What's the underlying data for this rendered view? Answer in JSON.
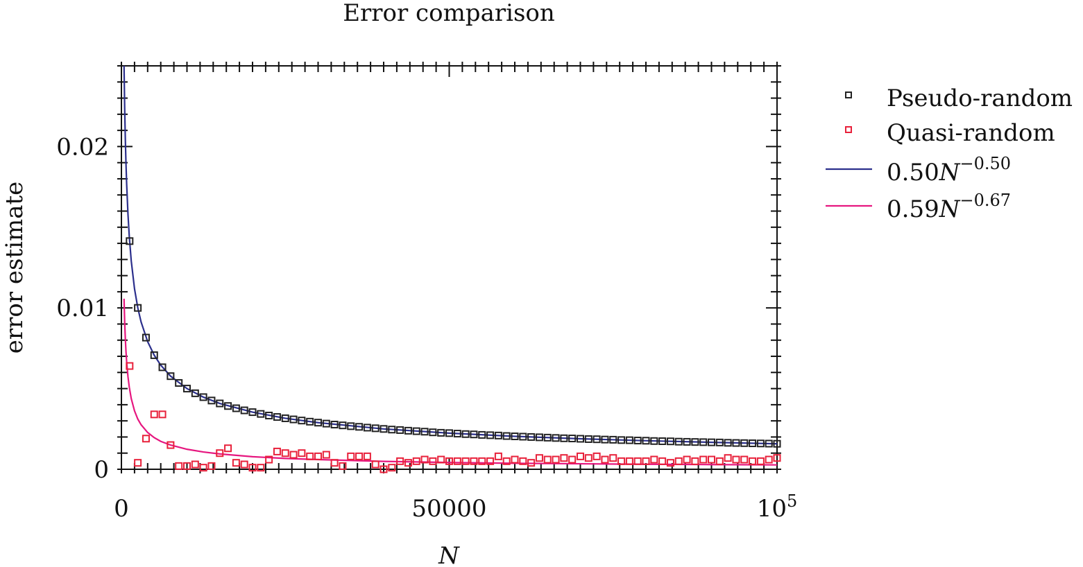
{
  "chart_data": {
    "type": "scatter",
    "title": "Error comparison",
    "xlabel": "N",
    "ylabel": "error estimate",
    "xlim": [
      0,
      100000
    ],
    "ylim": [
      0,
      0.025
    ],
    "x_ticks": [
      {
        "value": 0,
        "label": "0"
      },
      {
        "value": 50000,
        "label": "50000"
      },
      {
        "value": 100000,
        "label": "10",
        "sup": "5"
      }
    ],
    "y_ticks": [
      {
        "value": 0,
        "label": "0"
      },
      {
        "value": 0.01,
        "label": "0.01"
      },
      {
        "value": 0.02,
        "label": "0.02"
      }
    ],
    "grid": false,
    "legend_position": "right",
    "legend": [
      {
        "label": "Pseudo-random",
        "kind": "marker",
        "color": "#222222"
      },
      {
        "label": "Quasi-random",
        "kind": "marker",
        "color": "#e8203a"
      },
      {
        "label": "0.50N",
        "sup": "−0.50",
        "kind": "line",
        "color": "#2b2f8c"
      },
      {
        "label": "0.59N",
        "sup": "−0.67",
        "kind": "line",
        "color": "#e6167f"
      }
    ],
    "series": [
      {
        "name": "Pseudo-random",
        "type": "scatter",
        "color": "#222222",
        "x": [
          1250,
          2500,
          3750,
          5000,
          6250,
          7500,
          8750,
          10000,
          11250,
          12500,
          13750,
          15000,
          16250,
          17500,
          18750,
          20000,
          21250,
          22500,
          23750,
          25000,
          26250,
          27500,
          28750,
          30000,
          31250,
          32500,
          33750,
          35000,
          36250,
          37500,
          38750,
          40000,
          41250,
          42500,
          43750,
          45000,
          46250,
          47500,
          48750,
          50000,
          51250,
          52500,
          53750,
          55000,
          56250,
          57500,
          58750,
          60000,
          61250,
          62500,
          63750,
          65000,
          66250,
          67500,
          68750,
          70000,
          71250,
          72500,
          73750,
          75000,
          76250,
          77500,
          78750,
          80000,
          81250,
          82500,
          83750,
          85000,
          86250,
          87500,
          88750,
          90000,
          91250,
          92500,
          93750,
          95000,
          96250,
          97500,
          98750,
          100000
        ],
        "y": [
          0.01414,
          0.01,
          0.00816,
          0.00707,
          0.00632,
          0.00577,
          0.00535,
          0.005,
          0.00471,
          0.00447,
          0.00426,
          0.00408,
          0.00392,
          0.00378,
          0.00365,
          0.00354,
          0.00343,
          0.00333,
          0.00324,
          0.00316,
          0.00309,
          0.00302,
          0.00295,
          0.00289,
          0.00283,
          0.00277,
          0.00272,
          0.00267,
          0.00263,
          0.00258,
          0.00254,
          0.0025,
          0.00246,
          0.00243,
          0.00239,
          0.00236,
          0.00233,
          0.00229,
          0.00226,
          0.00224,
          0.00221,
          0.00218,
          0.00216,
          0.00213,
          0.00211,
          0.00209,
          0.00206,
          0.00204,
          0.00202,
          0.002,
          0.00198,
          0.00196,
          0.00194,
          0.00192,
          0.00191,
          0.00189,
          0.00187,
          0.00186,
          0.00184,
          0.00183,
          0.00181,
          0.0018,
          0.00178,
          0.00177,
          0.00175,
          0.00174,
          0.00173,
          0.00171,
          0.0017,
          0.00169,
          0.00168,
          0.00167,
          0.00166,
          0.00164,
          0.00163,
          0.00162,
          0.00161,
          0.0016,
          0.00159,
          0.00158
        ]
      },
      {
        "name": "Quasi-random",
        "type": "scatter",
        "color": "#e8203a",
        "x": [
          1250,
          2500,
          3750,
          5000,
          6250,
          7500,
          8750,
          10000,
          11250,
          12500,
          13750,
          15000,
          16250,
          17500,
          18750,
          20000,
          21250,
          22500,
          23750,
          25000,
          26250,
          27500,
          28750,
          30000,
          31250,
          32500,
          33750,
          35000,
          36250,
          37500,
          38750,
          40000,
          41250,
          42500,
          43750,
          45000,
          46250,
          47500,
          48750,
          50000,
          51250,
          52500,
          53750,
          55000,
          56250,
          57500,
          58750,
          60000,
          61250,
          62500,
          63750,
          65000,
          66250,
          67500,
          68750,
          70000,
          71250,
          72500,
          73750,
          75000,
          76250,
          77500,
          78750,
          80000,
          81250,
          82500,
          83750,
          85000,
          86250,
          87500,
          88750,
          90000,
          91250,
          92500,
          93750,
          95000,
          96250,
          97500,
          98750,
          100000
        ],
        "y": [
          0.0064,
          0.0004,
          0.0019,
          0.0034,
          0.0034,
          0.0015,
          0.0002,
          0.0002,
          0.0003,
          0.0001,
          0.0002,
          0.001,
          0.0013,
          0.0004,
          0.0003,
          0.0001,
          0.0001,
          0.0006,
          0.0011,
          0.001,
          0.0009,
          0.001,
          0.0008,
          0.0008,
          0.0009,
          0.0004,
          0.0002,
          0.0008,
          0.0008,
          0.0008,
          0.0003,
          0.0,
          0.0001,
          0.0005,
          0.0004,
          0.0005,
          0.0006,
          0.0005,
          0.0006,
          0.0005,
          0.0005,
          0.0005,
          0.0005,
          0.0005,
          0.0005,
          0.0008,
          0.0005,
          0.0006,
          0.0005,
          0.0004,
          0.0007,
          0.0006,
          0.0006,
          0.0007,
          0.0006,
          0.0008,
          0.0007,
          0.0008,
          0.0006,
          0.0007,
          0.0005,
          0.0005,
          0.0005,
          0.0005,
          0.0006,
          0.0005,
          0.0004,
          0.0005,
          0.0006,
          0.0005,
          0.0006,
          0.0006,
          0.0005,
          0.0007,
          0.0006,
          0.0006,
          0.0005,
          0.0005,
          0.0006,
          0.0007
        ]
      },
      {
        "name": "0.50N−0.50",
        "type": "line",
        "color": "#2b2f8c",
        "fit": {
          "coefficient": 0.5,
          "exponent": -0.5
        },
        "x": [
          400,
          500,
          600,
          700,
          800,
          1000,
          1200,
          1500,
          2000,
          2500,
          3000,
          4000,
          5000,
          6000,
          7500,
          10000,
          12500,
          15000,
          20000,
          25000,
          30000,
          40000,
          50000,
          60000,
          70000,
          80000,
          90000,
          100000
        ],
        "y": [
          0.025,
          0.02236,
          0.02041,
          0.0189,
          0.01768,
          0.01581,
          0.01443,
          0.01291,
          0.01118,
          0.01,
          0.00913,
          0.00791,
          0.00707,
          0.00645,
          0.00577,
          0.005,
          0.00447,
          0.00408,
          0.00354,
          0.00316,
          0.00289,
          0.0025,
          0.00224,
          0.00204,
          0.00189,
          0.00177,
          0.00167,
          0.00158
        ]
      },
      {
        "name": "0.59N−0.67",
        "type": "line",
        "color": "#e6167f",
        "fit": {
          "coefficient": 0.59,
          "exponent": -0.67
        },
        "x": [
          400,
          500,
          600,
          700,
          800,
          1000,
          1200,
          1500,
          2000,
          2500,
          3000,
          4000,
          5000,
          6000,
          7500,
          10000,
          12500,
          15000,
          20000,
          25000,
          30000,
          40000,
          50000,
          60000,
          70000,
          80000,
          90000,
          100000
        ],
        "y": [
          0.01057,
          0.00911,
          0.00807,
          0.00728,
          0.00666,
          0.00574,
          0.00509,
          0.00438,
          0.00362,
          0.00311,
          0.00276,
          0.00228,
          0.00196,
          0.00173,
          0.0015,
          0.00124,
          0.00107,
          0.00095,
          0.00078,
          0.00067,
          0.0006,
          0.00049,
          0.00042,
          0.00037,
          0.00034,
          0.00031,
          0.00029,
          0.00027
        ]
      }
    ]
  }
}
